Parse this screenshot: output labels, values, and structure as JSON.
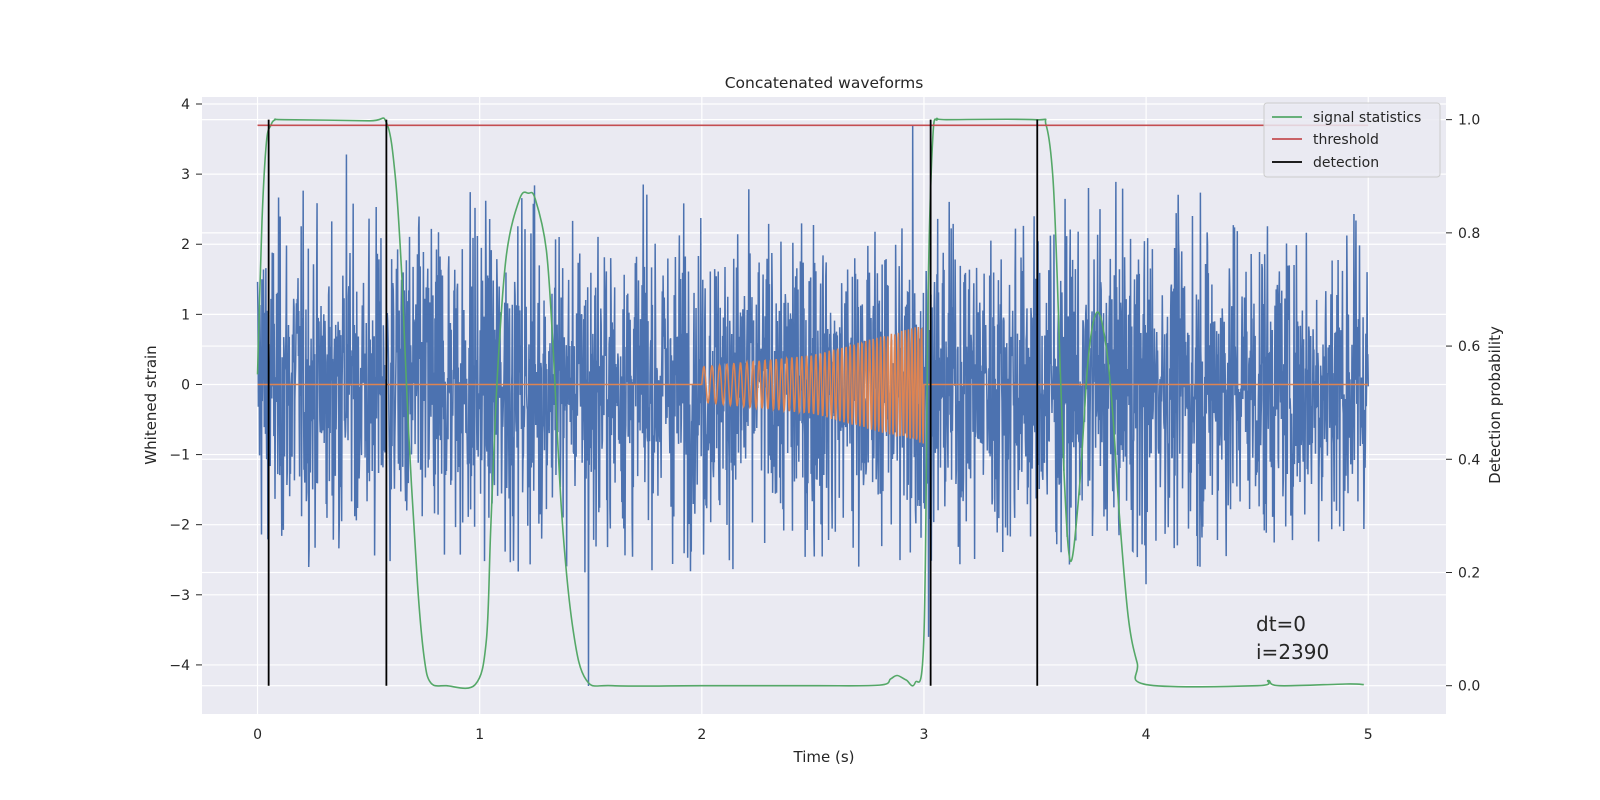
{
  "chart_data": {
    "type": "line",
    "title": "Concatenated waveforms",
    "xlabel": "Time (s)",
    "ylabel_left": "Whitened strain",
    "ylabel_right": "Detection probability",
    "xlim": [
      -0.25,
      5.35
    ],
    "ylim_left": [
      -4.7,
      4.1
    ],
    "ylim_right": [
      -0.05,
      1.04
    ],
    "x_ticks": [
      "0",
      "1",
      "2",
      "3",
      "4",
      "5"
    ],
    "x_tick_values": [
      0,
      1,
      2,
      3,
      4,
      5
    ],
    "y_left_ticks": [
      "4",
      "3",
      "2",
      "1",
      "0",
      "−1",
      "−2",
      "−3",
      "−4"
    ],
    "y_left_tick_values": [
      4,
      3,
      2,
      1,
      0,
      -1,
      -2,
      -3,
      -4
    ],
    "y_right_ticks": [
      "1.0",
      "0.8",
      "0.6",
      "0.4",
      "0.2",
      "0.0"
    ],
    "y_right_tick_values": [
      1.0,
      0.8,
      0.6,
      0.4,
      0.2,
      0.0
    ],
    "grid": true,
    "legend_position": "top-right",
    "series": [
      {
        "kind": "noise",
        "axis": "left",
        "color": "#4c72b0",
        "x_range": [
          0,
          5
        ],
        "samples": 2800,
        "typical_amplitude": 1.1,
        "peak_points": [
          [
            0.4,
            3.28
          ],
          [
            0.02,
            1.5
          ],
          [
            2.95,
            3.7
          ],
          [
            1.49,
            -4.3
          ],
          [
            3.02,
            -3.6
          ],
          [
            4.0,
            -2.85
          ]
        ]
      },
      {
        "kind": "chirp",
        "axis": "left",
        "color": "#dd8452",
        "x": [
          0,
          2,
          2.5,
          3,
          3.01,
          5
        ],
        "envelope": [
          0,
          0.25,
          0.42,
          0.85,
          0,
          0
        ],
        "cycles": 48
      },
      {
        "name": "signal statistics",
        "axis": "right",
        "color": "#55a868",
        "x": [
          0,
          0.02,
          0.04,
          0.06,
          0.08,
          0.12,
          0.5,
          0.58,
          0.62,
          0.65,
          0.68,
          0.72,
          0.75,
          0.78,
          0.85,
          0.98,
          1.03,
          1.05,
          1.08,
          1.12,
          1.18,
          1.22,
          1.25,
          1.3,
          1.33,
          1.37,
          1.42,
          1.48,
          1.6,
          2.0,
          2.5,
          2.8,
          2.85,
          2.88,
          2.92,
          2.96,
          3.0,
          3.02,
          3.04,
          3.06,
          3.1,
          3.5,
          3.55,
          3.58,
          3.6,
          3.63,
          3.66,
          3.7,
          3.74,
          3.78,
          3.82,
          3.85,
          3.88,
          3.92,
          3.96,
          4.0,
          4.5,
          4.55,
          4.6,
          4.9,
          4.98
        ],
        "y": [
          0.55,
          0.82,
          0.96,
          0.99,
          1.0,
          1.0,
          0.998,
          0.995,
          0.9,
          0.72,
          0.45,
          0.18,
          0.05,
          0.005,
          0.0,
          0.002,
          0.08,
          0.28,
          0.55,
          0.76,
          0.86,
          0.87,
          0.86,
          0.77,
          0.6,
          0.3,
          0.1,
          0.01,
          0.0,
          0.0,
          0.0,
          0.001,
          0.012,
          0.018,
          0.01,
          0.005,
          0.09,
          0.72,
          0.97,
          1.0,
          1.0,
          1.0,
          0.99,
          0.9,
          0.72,
          0.38,
          0.22,
          0.35,
          0.58,
          0.66,
          0.6,
          0.48,
          0.3,
          0.12,
          0.04,
          0.002,
          0.0,
          0.009,
          0.0,
          0.003,
          0.002
        ]
      },
      {
        "name": "threshold",
        "axis": "right",
        "color": "#c44e52",
        "x": [
          0,
          5
        ],
        "y": [
          0.99,
          0.99
        ]
      },
      {
        "name": "detection",
        "axis": "right",
        "color": "#000000",
        "kind": "vlines",
        "x": [
          0.05,
          0.58,
          3.03,
          3.51
        ],
        "y_range": [
          0.0,
          1.0
        ]
      }
    ],
    "annotations": [
      "dt=0",
      "i=2390"
    ]
  }
}
